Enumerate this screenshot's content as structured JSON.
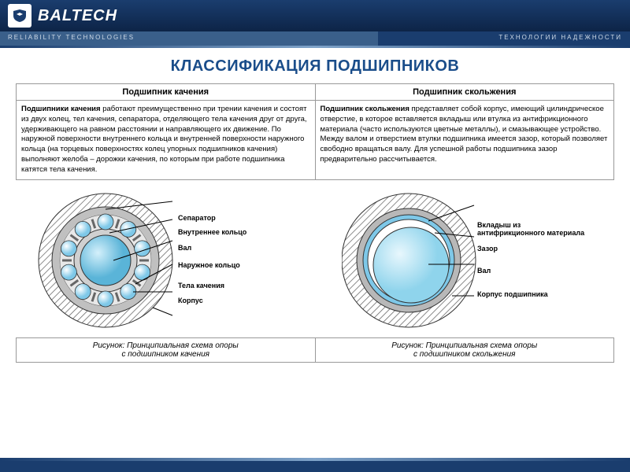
{
  "header": {
    "brand": "BALTECH",
    "sub_left": "RELIABILITY TECHNOLOGIES",
    "sub_right": "ТЕХНОЛОГИИ НАДЕЖНОСТИ"
  },
  "title": "КЛАССИФИКАЦИЯ ПОДШИПНИКОВ",
  "table": {
    "h1": "Подшипник качения",
    "h2": "Подшипник скольжения",
    "c1b": "Подшипники качения",
    "c1": " работают преимущественно при трении качения и состоят из двух колец, тел качения, сепаратора, отделяющего тела качения друг от друга, удерживающего на равном расстоянии и направляющего их движение. По наружной поверхности внутреннего кольца и внутренней поверхности наружного кольца (на торцевых поверхностях колец упорных подшипников качения) выполняют желоба – дорожки качения, по которым при работе подшипника катятся тела качения.",
    "c2b": "Подшипник скольжения",
    "c2": " представляет собой корпус, имеющий цилиндрическое отверстие, в которое вставляется вкладыш или втулка из антифрикционного материала (часто используются цветные металлы), и смазывающее устройство. Между валом и отверстием втулки подшипника имеется зазор, который позволяет свободно вращаться валу. Для успешной работы подшипника зазор предварительно рассчитывается."
  },
  "diag1": {
    "labels": [
      "Сепаратор",
      "Внутреннее кольцо",
      "Вал",
      "Наружное кольцо",
      "Тела качения",
      "Корпус"
    ],
    "colors": {
      "hatch": "#666",
      "outer": "#a8a8a8",
      "inner": "#d0d0d0",
      "shaft": "#7ec8e8",
      "ball": "#a8d8ef",
      "sep": "#888"
    }
  },
  "diag2": {
    "labels": [
      "Вкладыш из антифрикционного материала",
      "Зазор",
      "Вал",
      "Корпус подшипника"
    ],
    "colors": {
      "hatch": "#666",
      "housing": "#a8a8a8",
      "liner": "#7ec8e8",
      "gap": "#fff",
      "shaft": "#bfe6f5"
    }
  },
  "captions": {
    "c1a": "Рисунок: Принципиальная схема опоры",
    "c1b": "с подшипником качения",
    "c2a": "Рисунок: Принципиальная схема опоры",
    "c2b": "с подшипником скольжения"
  }
}
